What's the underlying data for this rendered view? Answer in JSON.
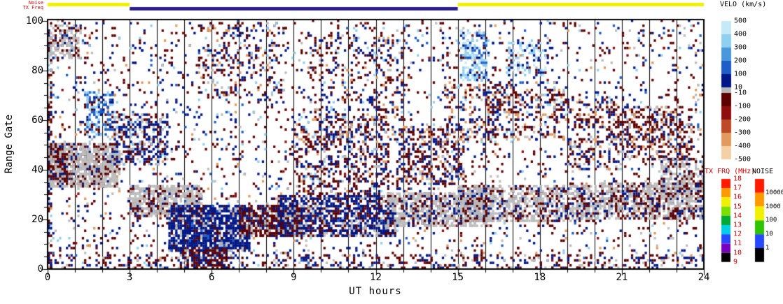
{
  "top_bars": {
    "noise": {
      "label": "Noise",
      "segments": [
        {
          "from": 0,
          "to": 3,
          "color": "#f0f000"
        },
        {
          "from": 15,
          "to": 24,
          "color": "#f0f000"
        }
      ]
    },
    "tx_freq": {
      "label": "TX Freq",
      "segments": [
        {
          "from": 3,
          "to": 15,
          "color": "#2b1d8a"
        }
      ]
    }
  },
  "colorbars": {
    "velocity": {
      "title": "VELO (km/s)",
      "tick_labels": [
        "500",
        "400",
        "300",
        "200",
        "100",
        "10",
        "-10",
        "-100",
        "-200",
        "-300",
        "-400",
        "-500"
      ],
      "colors": [
        "#c6e9f8",
        "#8fd0ef",
        "#4a98dc",
        "#1d5ec7",
        "#001787",
        "#b8b8b8",
        "#5e0000",
        "#8f0f0f",
        "#bd4a26",
        "#e39a5e",
        "#f4d0a4"
      ]
    },
    "tx_frq": {
      "title": "TX FRQ (MHz)",
      "tick_labels": [
        "18",
        "17",
        "16",
        "15",
        "14",
        "13",
        "12",
        "11",
        "10",
        "9"
      ],
      "colors": [
        "#ff1a00",
        "#ff9900",
        "#f0f000",
        "#7ade00",
        "#00aa33",
        "#00cfe8",
        "#2848ff",
        "#7a00c0",
        "#000000"
      ],
      "label_color": "#dd0000"
    },
    "noise": {
      "title": "NOISE",
      "tick_labels": [
        "10000",
        "1000",
        "100",
        "10",
        "1"
      ],
      "colors": [
        "#ff1a00",
        "#ff9900",
        "#f0f000",
        "#2fc400",
        "#2848ff",
        "#000000"
      ]
    }
  },
  "chart_data": {
    "type": "heatmap",
    "title": "",
    "xlabel": "UT hours",
    "ylabel": "Range Gate",
    "xlim": [
      0,
      24
    ],
    "ylim": [
      0,
      100.5
    ],
    "x_major_ticks": [
      0,
      3,
      6,
      9,
      12,
      15,
      18,
      21,
      24
    ],
    "x_minor_step": 1,
    "y_major_ticks": [
      0,
      20,
      40,
      60,
      80,
      100
    ],
    "y_minor_step": 5,
    "grid": {
      "vertical_line_every_hour": true
    },
    "legend_position": "right",
    "seed": 42,
    "palette": {
      "navy": "#001787",
      "blue": "#1d5ec7",
      "lblue": "#8fd0ef",
      "pblue": "#c6e9f8",
      "gray": "#bdbdbd",
      "maroon": "#5e0000",
      "red": "#8f0f0f",
      "orange": "#e39a5e",
      "peach": "#f4d0a4"
    },
    "features": [
      {
        "name": "global-speckle",
        "h": [
          0,
          24
        ],
        "g": [
          0,
          101
        ],
        "n": 3000,
        "colors": {
          "maroon": 0.4,
          "navy": 0.27,
          "gray": 0.1,
          "lblue": 0.07,
          "blue": 0.06,
          "orange": 0.05,
          "red": 0.05
        }
      },
      {
        "name": "left-edge-column",
        "h": [
          0,
          0.15
        ],
        "g": [
          0,
          101
        ],
        "n": 140,
        "colors": {
          "maroon": 0.4,
          "navy": 0.3,
          "lblue": 0.1,
          "orange": 0.1,
          "gray": 0.1
        }
      },
      {
        "name": "groundscatter-band-0-3h",
        "h": [
          0,
          2.6
        ],
        "g": [
          33,
          51
        ],
        "n": 1000,
        "colors": {
          "gray": 0.78,
          "maroon": 0.16,
          "navy": 0.06
        }
      },
      {
        "name": "left-edge-mix",
        "h": [
          0,
          0.7
        ],
        "g": [
          36,
          50
        ],
        "n": 150,
        "colors": {
          "maroon": 0.55,
          "gray": 0.3,
          "navy": 0.15
        }
      },
      {
        "name": "groundscatter-top-left",
        "h": [
          0,
          1.2
        ],
        "g": [
          85,
          99
        ],
        "n": 160,
        "colors": {
          "gray": 0.7,
          "maroon": 0.2,
          "navy": 0.1
        }
      },
      {
        "name": "blue-streak-2h",
        "h": [
          1.4,
          2.4
        ],
        "g": [
          54,
          72
        ],
        "n": 160,
        "colors": {
          "blue": 0.35,
          "lblue": 0.3,
          "navy": 0.2,
          "maroon": 0.15
        }
      },
      {
        "name": "navy-cluster-3h",
        "h": [
          2.4,
          4.4
        ],
        "g": [
          42,
          63
        ],
        "n": 320,
        "colors": {
          "navy": 0.55,
          "maroon": 0.22,
          "gray": 0.13,
          "lblue": 0.1
        }
      },
      {
        "name": "groundscatter-band-4h",
        "h": [
          3.0,
          5.6
        ],
        "g": [
          21,
          34
        ],
        "n": 600,
        "colors": {
          "gray": 0.72,
          "maroon": 0.2,
          "navy": 0.08
        }
      },
      {
        "name": "navy-blob-6h",
        "h": [
          4.4,
          7.4
        ],
        "g": [
          7,
          26
        ],
        "n": 1100,
        "colors": {
          "navy": 0.7,
          "gray": 0.14,
          "maroon": 0.1,
          "blue": 0.06
        }
      },
      {
        "name": "bottom-maroon-6h",
        "h": [
          4.8,
          6.6
        ],
        "g": [
          0,
          8
        ],
        "n": 200,
        "colors": {
          "maroon": 0.62,
          "navy": 0.28,
          "gray": 0.1
        }
      },
      {
        "name": "speckle-6-8h-high",
        "h": [
          5.5,
          8.5
        ],
        "g": [
          70,
          100
        ],
        "n": 220,
        "colors": {
          "maroon": 0.4,
          "navy": 0.3,
          "lblue": 0.12,
          "orange": 0.1,
          "gray": 0.08
        }
      },
      {
        "name": "maroon-blob-8h",
        "h": [
          7.0,
          9.3
        ],
        "g": [
          13,
          26
        ],
        "n": 550,
        "colors": {
          "maroon": 0.62,
          "navy": 0.22,
          "gray": 0.16
        }
      },
      {
        "name": "navy-band-10h",
        "h": [
          8.4,
          12.7
        ],
        "g": [
          13,
          30
        ],
        "n": 1000,
        "colors": {
          "navy": 0.56,
          "gray": 0.24,
          "maroon": 0.2
        }
      },
      {
        "name": "mid-speckle-10h",
        "h": [
          9,
          12.5
        ],
        "g": [
          30,
          62
        ],
        "n": 550,
        "colors": {
          "maroon": 0.42,
          "navy": 0.34,
          "gray": 0.1,
          "orange": 0.07,
          "lblue": 0.07
        }
      },
      {
        "name": "speckle-10-13h-high",
        "h": [
          9.5,
          13
        ],
        "g": [
          60,
          95
        ],
        "n": 260,
        "colors": {
          "maroon": 0.45,
          "navy": 0.33,
          "orange": 0.12,
          "lblue": 0.1
        }
      },
      {
        "name": "groundscatter-band-14h",
        "h": [
          12.4,
          16.2
        ],
        "g": [
          17,
          31
        ],
        "n": 750,
        "colors": {
          "gray": 0.66,
          "maroon": 0.18,
          "navy": 0.16
        }
      },
      {
        "name": "speckle-14h",
        "h": [
          12.8,
          15.2
        ],
        "g": [
          34,
          58
        ],
        "n": 320,
        "colors": {
          "maroon": 0.44,
          "navy": 0.36,
          "orange": 0.1,
          "gray": 0.1
        }
      },
      {
        "name": "lightblue-cluster-15h",
        "h": [
          15.1,
          16.1
        ],
        "g": [
          76,
          97
        ],
        "n": 170,
        "colors": {
          "lblue": 0.4,
          "pblue": 0.25,
          "blue": 0.2,
          "navy": 0.15
        }
      },
      {
        "name": "orange-speckle-15h",
        "h": [
          14.5,
          16.5
        ],
        "g": [
          50,
          75
        ],
        "n": 160,
        "colors": {
          "orange": 0.3,
          "maroon": 0.3,
          "navy": 0.25,
          "lblue": 0.15
        }
      },
      {
        "name": "groundscatter-band-17h",
        "h": [
          15.0,
          20.2
        ],
        "g": [
          19,
          34
        ],
        "n": 900,
        "colors": {
          "gray": 0.62,
          "maroon": 0.22,
          "navy": 0.16
        }
      },
      {
        "name": "speckle-17h-high",
        "h": [
          16,
          19
        ],
        "g": [
          52,
          76
        ],
        "n": 300,
        "colors": {
          "maroon": 0.38,
          "navy": 0.3,
          "orange": 0.14,
          "gray": 0.1,
          "lblue": 0.08
        }
      },
      {
        "name": "lightblue-cluster-17h",
        "h": [
          16.8,
          18.4
        ],
        "g": [
          78,
          93
        ],
        "n": 110,
        "colors": {
          "lblue": 0.35,
          "pblue": 0.25,
          "navy": 0.25,
          "maroon": 0.15
        }
      },
      {
        "name": "speckle-20h",
        "h": [
          19,
          21
        ],
        "g": [
          40,
          70
        ],
        "n": 250,
        "colors": {
          "maroon": 0.45,
          "navy": 0.3,
          "gray": 0.15,
          "orange": 0.1
        }
      },
      {
        "name": "groundscatter-band-22h",
        "h": [
          20.2,
          24
        ],
        "g": [
          20,
          35
        ],
        "n": 800,
        "colors": {
          "gray": 0.58,
          "maroon": 0.27,
          "navy": 0.15
        }
      },
      {
        "name": "maroon-cluster-22h",
        "h": [
          21,
          23.6
        ],
        "g": [
          44,
          66
        ],
        "n": 380,
        "colors": {
          "maroon": 0.55,
          "navy": 0.2,
          "gray": 0.13,
          "orange": 0.12
        }
      },
      {
        "name": "gray-patch-23h",
        "h": [
          22.4,
          24
        ],
        "g": [
          28,
          45
        ],
        "n": 260,
        "colors": {
          "gray": 0.66,
          "maroon": 0.24,
          "navy": 0.1
        }
      },
      {
        "name": "bottom-row",
        "h": [
          0,
          24
        ],
        "g": [
          0,
          6
        ],
        "n": 420,
        "colors": {
          "maroon": 0.5,
          "navy": 0.36,
          "gray": 0.14
        }
      }
    ]
  }
}
